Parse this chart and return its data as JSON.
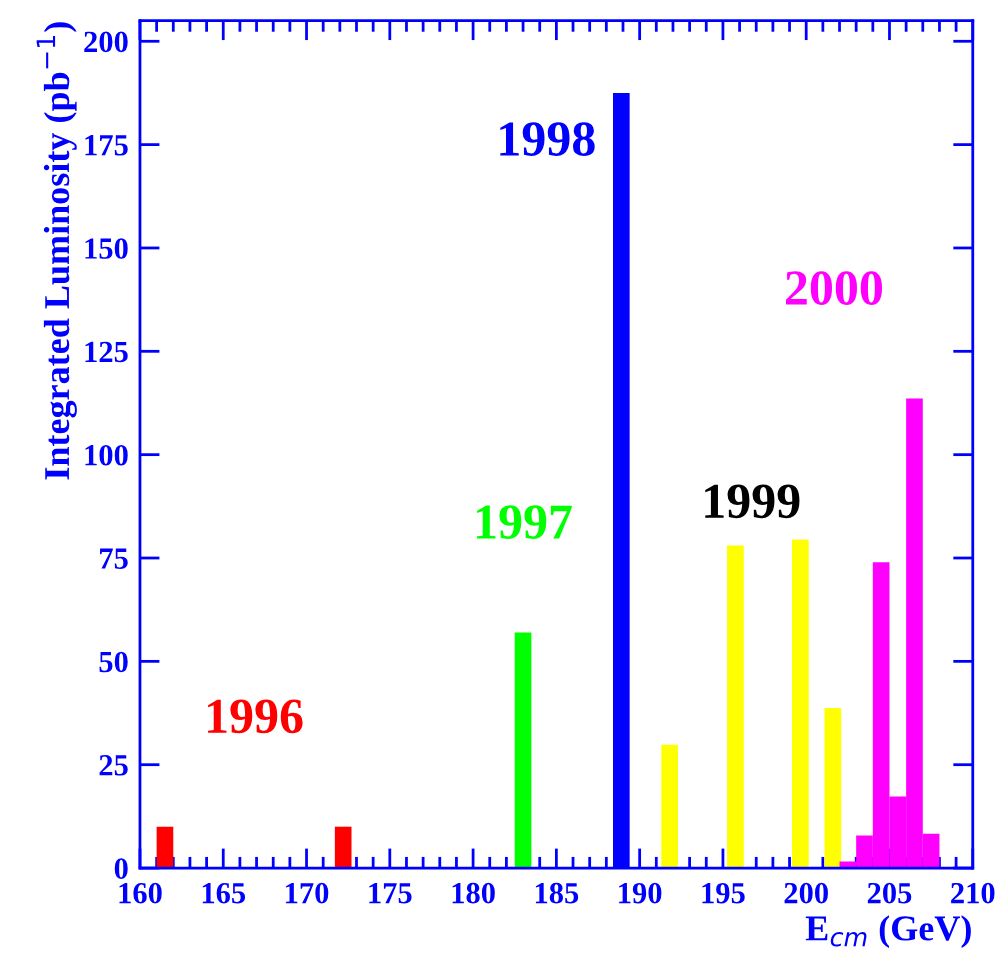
{
  "chart_data": {
    "type": "bar",
    "xlabel": "E$_{cm}$ (GeV)",
    "ylabel": "Integrated Luminosity (pb$^{−1}$)",
    "series": [
      {
        "name": "1996",
        "color": "#ff0000",
        "x": [
          161.5,
          172.2
        ],
        "values": [
          10,
          10
        ]
      },
      {
        "name": "1997",
        "color": "#00ff00",
        "x": [
          183.0
        ],
        "values": [
          57
        ]
      },
      {
        "name": "1998",
        "color": "#0000ff",
        "x": [
          188.9
        ],
        "values": [
          187.5
        ]
      },
      {
        "name": "1999",
        "color": "#ffff00",
        "x": [
          191.8,
          195.75,
          199.65,
          201.6
        ],
        "values": [
          29.8,
          78,
          79.5,
          38.7
        ]
      },
      {
        "name": "2000",
        "color": "#ff00ff",
        "x": [
          202.5,
          203.5,
          204.5,
          205.5,
          206.5,
          207.5
        ],
        "values": [
          1.6,
          7.9,
          74,
          17.3,
          113.6,
          8.3
        ]
      }
    ],
    "xlim": [
      160,
      210
    ],
    "xticks": [
      160,
      165,
      170,
      175,
      180,
      185,
      190,
      195,
      200,
      205,
      210
    ],
    "ylim": [
      0,
      205
    ],
    "yticks": [
      0,
      25,
      50,
      75,
      100,
      125,
      150,
      175,
      200
    ],
    "grid": false,
    "legend": false
  }
}
